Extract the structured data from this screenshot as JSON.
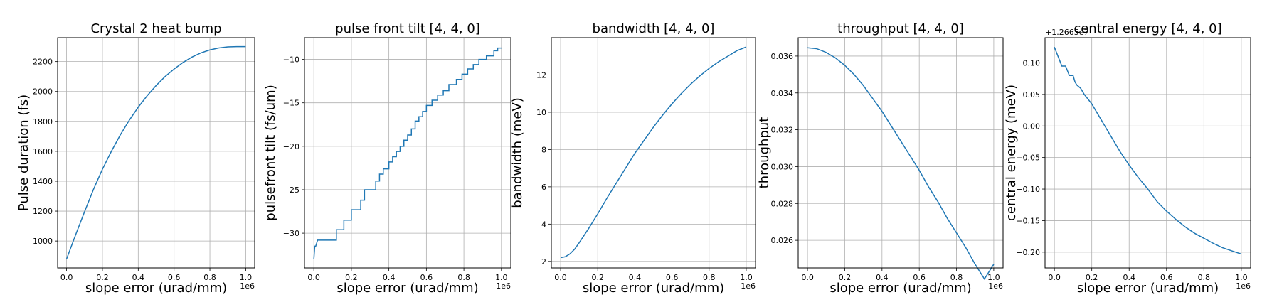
{
  "chart_data": [
    {
      "type": "line",
      "title": "Crystal 2 heat bump",
      "xlabel": "slope error (urad/mm)",
      "ylabel": "Pulse duration (fs)",
      "x_offset_label": "1e6",
      "y_offset_label": "",
      "xlim": [
        -0.05,
        1.05
      ],
      "ylim": [
        820,
        2360
      ],
      "xticks": [
        0.0,
        0.2,
        0.4,
        0.6,
        0.8,
        1.0
      ],
      "xtick_labels": [
        "0.0",
        "0.2",
        "0.4",
        "0.6",
        "0.8",
        "1.0"
      ],
      "yticks": [
        1000,
        1200,
        1400,
        1600,
        1800,
        2000,
        2200
      ],
      "ytick_labels": [
        "1000",
        "1200",
        "1400",
        "1600",
        "1800",
        "2000",
        "2200"
      ],
      "grid": true,
      "color": "#1f77b4",
      "series": [
        {
          "x": [
            0.0,
            0.05,
            0.1,
            0.15,
            0.2,
            0.25,
            0.3,
            0.35,
            0.4,
            0.45,
            0.5,
            0.55,
            0.6,
            0.65,
            0.7,
            0.75,
            0.8,
            0.85,
            0.9,
            0.95,
            1.0
          ],
          "y": [
            880,
            1040,
            1195,
            1345,
            1480,
            1600,
            1710,
            1808,
            1895,
            1972,
            2040,
            2100,
            2150,
            2194,
            2230,
            2258,
            2278,
            2291,
            2298,
            2300,
            2300
          ]
        }
      ]
    },
    {
      "type": "line",
      "title": "pulse front tilt [4, 4, 0]",
      "xlabel": "slope error (urad/mm)",
      "ylabel": "pulsefront tilt (fs/um)",
      "x_offset_label": "1e6",
      "y_offset_label": "",
      "xlim": [
        -0.05,
        1.05
      ],
      "ylim": [
        -34.0,
        -7.5
      ],
      "xticks": [
        0.0,
        0.2,
        0.4,
        0.6,
        0.8,
        1.0
      ],
      "xtick_labels": [
        "0.0",
        "0.2",
        "0.4",
        "0.6",
        "0.8",
        "1.0"
      ],
      "yticks": [
        -30,
        -25,
        -20,
        -15,
        -10
      ],
      "ytick_labels": [
        "−30",
        "−25",
        "−20",
        "−15",
        "−10"
      ],
      "grid": true,
      "color": "#1f77b4",
      "series": [
        {
          "x": [
            0.0,
            0.005,
            0.01,
            0.02,
            0.12,
            0.12,
            0.16,
            0.16,
            0.2,
            0.2,
            0.25,
            0.25,
            0.27,
            0.27,
            0.33,
            0.33,
            0.35,
            0.35,
            0.37,
            0.37,
            0.4,
            0.4,
            0.42,
            0.42,
            0.44,
            0.44,
            0.46,
            0.46,
            0.48,
            0.48,
            0.5,
            0.5,
            0.52,
            0.52,
            0.54,
            0.54,
            0.56,
            0.56,
            0.58,
            0.58,
            0.6,
            0.6,
            0.63,
            0.63,
            0.66,
            0.66,
            0.69,
            0.69,
            0.72,
            0.72,
            0.76,
            0.76,
            0.79,
            0.79,
            0.82,
            0.82,
            0.85,
            0.85,
            0.88,
            0.88,
            0.92,
            0.92,
            0.96,
            0.96,
            0.98,
            0.98,
            1.0
          ],
          "y": [
            -33.0,
            -31.5,
            -31.5,
            -30.8,
            -30.8,
            -29.6,
            -29.6,
            -28.5,
            -28.5,
            -27.3,
            -27.3,
            -26.2,
            -26.2,
            -25.0,
            -25.0,
            -24.0,
            -24.0,
            -23.2,
            -23.2,
            -22.6,
            -22.6,
            -21.8,
            -21.8,
            -21.2,
            -21.2,
            -20.6,
            -20.6,
            -20.0,
            -20.0,
            -19.3,
            -19.3,
            -18.7,
            -18.7,
            -18.0,
            -18.0,
            -17.1,
            -17.1,
            -16.6,
            -16.6,
            -16.0,
            -16.0,
            -15.3,
            -15.3,
            -14.7,
            -14.7,
            -14.1,
            -14.1,
            -13.6,
            -13.6,
            -12.9,
            -12.9,
            -12.3,
            -12.3,
            -11.7,
            -11.7,
            -11.1,
            -11.1,
            -10.6,
            -10.6,
            -10.0,
            -10.0,
            -9.6,
            -9.6,
            -9.0,
            -9.0,
            -8.7,
            -8.7
          ]
        }
      ]
    },
    {
      "type": "line",
      "title": "bandwidth [4, 4, 0]",
      "xlabel": "slope error (urad/mm)",
      "ylabel": "bandwidth (meV)",
      "x_offset_label": "1e6",
      "y_offset_label": "",
      "xlim": [
        -0.05,
        1.05
      ],
      "ylim": [
        1.65,
        14.0
      ],
      "xticks": [
        0.0,
        0.2,
        0.4,
        0.6,
        0.8,
        1.0
      ],
      "xtick_labels": [
        "0.0",
        "0.2",
        "0.4",
        "0.6",
        "0.8",
        "1.0"
      ],
      "yticks": [
        2,
        4,
        6,
        8,
        10,
        12
      ],
      "ytick_labels": [
        "2",
        "4",
        "6",
        "8",
        "10",
        "12"
      ],
      "grid": true,
      "color": "#1f77b4",
      "series": [
        {
          "x": [
            0.0,
            0.025,
            0.05,
            0.075,
            0.1,
            0.15,
            0.2,
            0.25,
            0.3,
            0.35,
            0.4,
            0.45,
            0.5,
            0.55,
            0.6,
            0.65,
            0.7,
            0.75,
            0.8,
            0.85,
            0.9,
            0.95,
            1.0
          ],
          "y": [
            2.2,
            2.25,
            2.4,
            2.65,
            3.0,
            3.75,
            4.55,
            5.4,
            6.2,
            7.0,
            7.8,
            8.5,
            9.2,
            9.85,
            10.45,
            11.0,
            11.5,
            11.95,
            12.35,
            12.7,
            13.0,
            13.3,
            13.5
          ]
        }
      ]
    },
    {
      "type": "line",
      "title": "throughput [4, 4, 0]",
      "xlabel": "slope error (urad/mm)",
      "ylabel": "throughput",
      "x_offset_label": "1e6",
      "y_offset_label": "",
      "xlim": [
        -0.05,
        1.05
      ],
      "ylim": [
        0.0245,
        0.037
      ],
      "xticks": [
        0.0,
        0.2,
        0.4,
        0.6,
        0.8,
        1.0
      ],
      "xtick_labels": [
        "0.0",
        "0.2",
        "0.4",
        "0.6",
        "0.8",
        "1.0"
      ],
      "yticks": [
        0.026,
        0.028,
        0.03,
        0.032,
        0.034,
        0.036
      ],
      "ytick_labels": [
        "0.026",
        "0.028",
        "0.030",
        "0.032",
        "0.034",
        "0.036"
      ],
      "grid": true,
      "color": "#1f77b4",
      "series": [
        {
          "x": [
            0.0,
            0.05,
            0.1,
            0.15,
            0.2,
            0.25,
            0.3,
            0.35,
            0.4,
            0.45,
            0.5,
            0.55,
            0.6,
            0.65,
            0.7,
            0.75,
            0.8,
            0.85,
            0.9,
            0.95,
            1.0
          ],
          "y": [
            0.03645,
            0.0364,
            0.0362,
            0.0359,
            0.0355,
            0.035,
            0.0344,
            0.0337,
            0.033,
            0.0322,
            0.0314,
            0.0306,
            0.0298,
            0.0289,
            0.0281,
            0.0272,
            0.0264,
            0.0256,
            0.0247,
            0.0239,
            0.0247
          ]
        }
      ]
    },
    {
      "type": "line",
      "title": "central energy [4, 4, 0]",
      "xlabel": "slope error (urad/mm)",
      "ylabel": "central energy (meV)",
      "x_offset_label": "1e6",
      "y_offset_label": "+1.2665e7",
      "xlim": [
        -0.05,
        1.05
      ],
      "ylim": [
        -0.225,
        0.14
      ],
      "xticks": [
        0.0,
        0.2,
        0.4,
        0.6,
        0.8,
        1.0
      ],
      "xtick_labels": [
        "0.0",
        "0.2",
        "0.4",
        "0.6",
        "0.8",
        "1.0"
      ],
      "yticks": [
        -0.2,
        -0.15,
        -0.1,
        -0.05,
        0.0,
        0.05,
        0.1
      ],
      "ytick_labels": [
        "−0.20",
        "−0.15",
        "−0.10",
        "−0.05",
        "0.00",
        "0.05",
        "0.10"
      ],
      "grid": true,
      "color": "#1f77b4",
      "series": [
        {
          "x": [
            0.0,
            0.02,
            0.04,
            0.05,
            0.06,
            0.08,
            0.1,
            0.11,
            0.12,
            0.14,
            0.16,
            0.2,
            0.25,
            0.3,
            0.35,
            0.4,
            0.45,
            0.5,
            0.55,
            0.6,
            0.65,
            0.7,
            0.75,
            0.8,
            0.85,
            0.9,
            0.95,
            1.0
          ],
          "y": [
            0.125,
            0.11,
            0.095,
            0.095,
            0.095,
            0.08,
            0.08,
            0.07,
            0.065,
            0.06,
            0.05,
            0.035,
            0.01,
            -0.015,
            -0.04,
            -0.062,
            -0.082,
            -0.1,
            -0.12,
            -0.135,
            -0.148,
            -0.16,
            -0.17,
            -0.178,
            -0.186,
            -0.193,
            -0.198,
            -0.203
          ]
        }
      ]
    }
  ]
}
